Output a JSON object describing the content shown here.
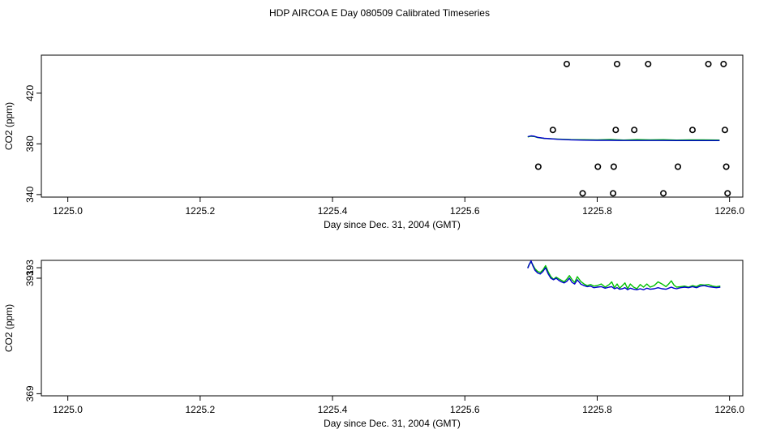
{
  "colors": {
    "green_series": "#00c000",
    "blue_series": "#0000cc",
    "axis": "#000000"
  },
  "chart_data": [
    {
      "type": "line",
      "title": "HDP AIRCOA E  Day 080509  Calibrated Timeseries",
      "xlabel": "Day since Dec. 31, 2004 (GMT)",
      "ylabel": "CO2 (ppm)",
      "xlim": [
        1224.96,
        1226.02
      ],
      "ylim": [
        338,
        450
      ],
      "xticks": [
        "1225.0",
        "1225.2",
        "1225.4",
        "1225.6",
        "1225.8",
        "1226.0"
      ],
      "yticks": [
        "340",
        "380",
        "420"
      ],
      "scatter_points": [
        {
          "x": 1225.754,
          "y": 443
        },
        {
          "x": 1225.83,
          "y": 443
        },
        {
          "x": 1225.877,
          "y": 443
        },
        {
          "x": 1225.968,
          "y": 443
        },
        {
          "x": 1225.991,
          "y": 443
        },
        {
          "x": 1225.733,
          "y": 391
        },
        {
          "x": 1225.828,
          "y": 391
        },
        {
          "x": 1225.856,
          "y": 391
        },
        {
          "x": 1225.944,
          "y": 391
        },
        {
          "x": 1225.993,
          "y": 391
        },
        {
          "x": 1225.711,
          "y": 362
        },
        {
          "x": 1225.801,
          "y": 362
        },
        {
          "x": 1225.825,
          "y": 362
        },
        {
          "x": 1225.922,
          "y": 362
        },
        {
          "x": 1225.995,
          "y": 362
        },
        {
          "x": 1225.778,
          "y": 341
        },
        {
          "x": 1225.824,
          "y": 341
        },
        {
          "x": 1225.9,
          "y": 341
        },
        {
          "x": 1225.997,
          "y": 341
        }
      ],
      "series": [
        {
          "name": "green",
          "x": [
            1225.695,
            1225.7,
            1225.705,
            1225.71,
            1225.72,
            1225.74,
            1225.76,
            1225.78,
            1225.8,
            1225.82,
            1225.84,
            1225.86,
            1225.88,
            1225.9,
            1225.92,
            1225.94,
            1225.96,
            1225.985
          ],
          "y": [
            385.5,
            386.0,
            385.8,
            385.0,
            384.3,
            383.8,
            383.4,
            383.3,
            383.2,
            383.5,
            383.0,
            383.4,
            383.1,
            383.3,
            383.0,
            383.2,
            383.1,
            383.0
          ]
        },
        {
          "name": "blue",
          "x": [
            1225.695,
            1225.7,
            1225.705,
            1225.71,
            1225.72,
            1225.74,
            1225.76,
            1225.78,
            1225.8,
            1225.82,
            1225.84,
            1225.86,
            1225.88,
            1225.9,
            1225.92,
            1225.94,
            1225.96,
            1225.985
          ],
          "y": [
            385.7,
            386.3,
            386.0,
            385.2,
            384.4,
            383.6,
            383.2,
            382.9,
            382.8,
            382.8,
            382.7,
            382.7,
            382.7,
            382.7,
            382.6,
            382.6,
            382.6,
            382.6
          ]
        }
      ]
    },
    {
      "type": "line",
      "title": "",
      "xlabel": "Day since Dec. 31, 2004 (GMT)",
      "ylabel": "CO2 (ppm)",
      "xlim": [
        1224.96,
        1226.02
      ],
      "ylim": [
        368.6,
        394.4
      ],
      "xticks": [
        "1225.0",
        "1225.2",
        "1225.4",
        "1225.6",
        "1225.8",
        "1226.0"
      ],
      "yticks": [
        "369",
        "391",
        "393"
      ],
      "series": [
        {
          "name": "green",
          "x": [
            1225.695,
            1225.697,
            1225.7,
            1225.703,
            1225.706,
            1225.71,
            1225.714,
            1225.718,
            1225.722,
            1225.726,
            1225.73,
            1225.734,
            1225.738,
            1225.742,
            1225.746,
            1225.75,
            1225.754,
            1225.758,
            1225.762,
            1225.766,
            1225.77,
            1225.775,
            1225.78,
            1225.785,
            1225.79,
            1225.795,
            1225.8,
            1225.806,
            1225.812,
            1225.818,
            1225.822,
            1225.826,
            1225.83,
            1225.834,
            1225.838,
            1225.842,
            1225.846,
            1225.85,
            1225.855,
            1225.86,
            1225.865,
            1225.87,
            1225.875,
            1225.88,
            1225.886,
            1225.892,
            1225.898,
            1225.904,
            1225.908,
            1225.912,
            1225.916,
            1225.92,
            1225.926,
            1225.932,
            1225.938,
            1225.944,
            1225.95,
            1225.956,
            1225.962,
            1225.968,
            1225.974,
            1225.98,
            1225.986
          ],
          "y": [
            393.0,
            393.6,
            394.1,
            393.5,
            392.8,
            392.3,
            392.1,
            392.6,
            393.4,
            392.2,
            391.3,
            390.8,
            391.2,
            390.9,
            390.6,
            390.3,
            390.8,
            391.5,
            390.7,
            390.2,
            391.3,
            390.4,
            389.9,
            389.6,
            389.8,
            389.5,
            389.6,
            389.9,
            389.3,
            389.8,
            390.3,
            389.2,
            389.9,
            389.1,
            389.6,
            390.1,
            389.0,
            389.9,
            389.3,
            389.0,
            389.8,
            389.3,
            389.9,
            389.3,
            389.6,
            390.3,
            389.9,
            389.4,
            389.9,
            390.5,
            389.7,
            389.3,
            389.4,
            389.5,
            389.3,
            389.6,
            389.4,
            389.8,
            389.7,
            389.8,
            389.5,
            389.4,
            389.5
          ]
        },
        {
          "name": "blue",
          "x": [
            1225.695,
            1225.697,
            1225.7,
            1225.703,
            1225.706,
            1225.71,
            1225.714,
            1225.718,
            1225.722,
            1225.726,
            1225.73,
            1225.734,
            1225.738,
            1225.742,
            1225.746,
            1225.75,
            1225.754,
            1225.758,
            1225.762,
            1225.766,
            1225.77,
            1225.775,
            1225.78,
            1225.785,
            1225.79,
            1225.795,
            1225.8,
            1225.806,
            1225.812,
            1225.818,
            1225.822,
            1225.826,
            1225.83,
            1225.834,
            1225.838,
            1225.842,
            1225.846,
            1225.85,
            1225.855,
            1225.86,
            1225.865,
            1225.87,
            1225.875,
            1225.88,
            1225.886,
            1225.892,
            1225.898,
            1225.904,
            1225.908,
            1225.912,
            1225.916,
            1225.92,
            1225.926,
            1225.932,
            1225.938,
            1225.944,
            1225.95,
            1225.956,
            1225.962,
            1225.968,
            1225.974,
            1225.98,
            1225.986
          ],
          "y": [
            392.9,
            393.5,
            394.3,
            393.3,
            392.5,
            392.0,
            391.8,
            392.3,
            393.0,
            391.8,
            391.0,
            390.7,
            391.0,
            390.6,
            390.3,
            390.1,
            390.4,
            391.0,
            390.2,
            389.9,
            390.7,
            389.9,
            389.6,
            389.4,
            389.5,
            389.2,
            389.3,
            389.4,
            389.1,
            389.3,
            389.4,
            389.0,
            389.2,
            388.9,
            389.0,
            389.2,
            388.8,
            389.1,
            388.9,
            388.8,
            389.0,
            388.8,
            389.1,
            388.9,
            389.0,
            389.2,
            389.0,
            388.9,
            389.1,
            389.3,
            389.1,
            389.0,
            389.2,
            389.3,
            389.2,
            389.4,
            389.2,
            389.5,
            389.6,
            389.4,
            389.3,
            389.2,
            389.3
          ]
        }
      ]
    }
  ]
}
